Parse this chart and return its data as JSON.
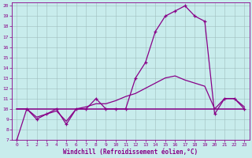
{
  "background_color": "#c8ecec",
  "grid_color": "#9fbfbf",
  "line_color": "#880088",
  "xlabel": "Windchill (Refroidissement éolien,°C)",
  "x": [
    0,
    1,
    2,
    3,
    4,
    5,
    6,
    7,
    8,
    9,
    10,
    11,
    12,
    13,
    14,
    15,
    16,
    17,
    18,
    19,
    20,
    21,
    22,
    23
  ],
  "main_line": [
    7,
    10,
    9,
    9.5,
    10,
    8.5,
    10,
    10,
    11,
    10,
    10,
    10,
    13,
    14.5,
    17.5,
    19,
    19.5,
    20,
    19,
    18.5,
    9.5,
    11,
    11,
    10
  ],
  "slow_rise_line": [
    10,
    10,
    9.2,
    9.5,
    9.8,
    8.8,
    10,
    10.2,
    10.5,
    10.5,
    10.8,
    11.2,
    11.5,
    12.0,
    12.5,
    13.0,
    13.2,
    12.8,
    12.5,
    12.2,
    10.0,
    11.0,
    11.0,
    10.2
  ],
  "flat_line": [
    10,
    10,
    10,
    10,
    10,
    10,
    10,
    10,
    10,
    10,
    10,
    10,
    10,
    10,
    10,
    10,
    10,
    10,
    10,
    10,
    10,
    10,
    10,
    10
  ],
  "ylim_min": 7,
  "ylim_max": 20,
  "xlim_min": 0,
  "xlim_max": 23,
  "yticks": [
    7,
    8,
    9,
    10,
    11,
    12,
    13,
    14,
    15,
    16,
    17,
    18,
    19,
    20
  ],
  "xticks": [
    0,
    1,
    2,
    3,
    4,
    5,
    6,
    7,
    8,
    9,
    10,
    11,
    12,
    13,
    14,
    15,
    16,
    17,
    18,
    19,
    20,
    21,
    22,
    23
  ],
  "xlabel_fontsize": 5.5,
  "tick_fontsize": 4.5,
  "linewidth": 0.9,
  "marker": "+",
  "markersize": 3.5
}
